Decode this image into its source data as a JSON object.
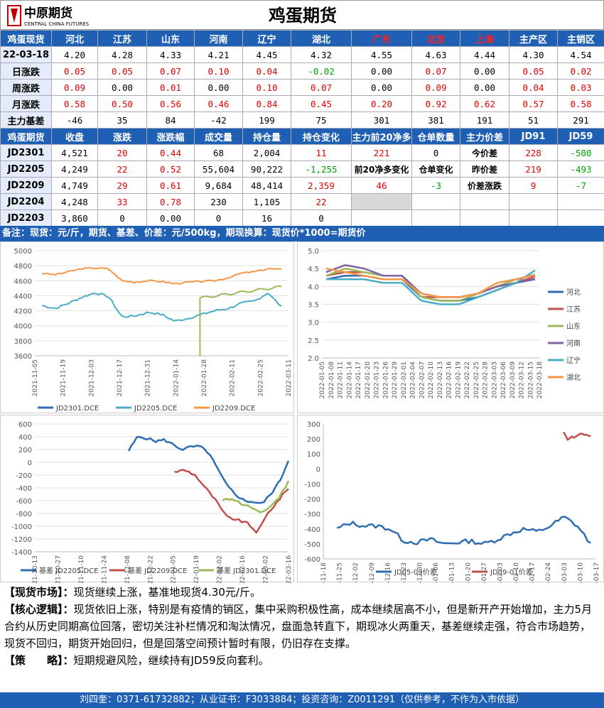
{
  "header": {
    "title": "鸡蛋期货",
    "logo_text": "中原期货",
    "logo_sub": "CENTRAL CHINA FUTURES"
  },
  "spot": {
    "headers": [
      "鸡蛋现货",
      "河北",
      "江苏",
      "山东",
      "河南",
      "辽宁",
      "湖北",
      "广东",
      "北京",
      "上海",
      "主产区",
      "主销区"
    ],
    "red_headers": [
      7,
      8,
      9
    ],
    "rows": [
      {
        "label": "22-03-18",
        "cells": [
          "4.20",
          "4.28",
          "4.33",
          "4.21",
          "4.45",
          "4.32",
          "4.55",
          "4.63",
          "4.44",
          "4.30",
          "4.54"
        ],
        "colors": [
          "",
          "",
          "",
          "",
          "",
          "",
          "",
          "",
          "",
          "",
          ""
        ]
      },
      {
        "label": "日涨跌",
        "cells": [
          "0.05",
          "0.05",
          "0.07",
          "0.10",
          "0.04",
          "-0.02",
          "0.00",
          "0.07",
          "0.00",
          "0.05",
          "0.02"
        ],
        "colors": [
          "r",
          "r",
          "r",
          "r",
          "r",
          "g",
          "",
          "r",
          "",
          "r",
          "r"
        ]
      },
      {
        "label": "周涨跌",
        "cells": [
          "0.09",
          "0.00",
          "0.01",
          "0.00",
          "0.10",
          "0.07",
          "0.00",
          "0.09",
          "0.00",
          "0.04",
          "0.03"
        ],
        "colors": [
          "r",
          "",
          "r",
          "",
          "r",
          "r",
          "",
          "r",
          "",
          "r",
          "r"
        ]
      },
      {
        "label": "月涨跌",
        "cells": [
          "0.58",
          "0.50",
          "0.56",
          "0.46",
          "0.84",
          "0.45",
          "0.20",
          "0.92",
          "0.62",
          "0.57",
          "0.58"
        ],
        "colors": [
          "r",
          "r",
          "r",
          "r",
          "r",
          "r",
          "r",
          "r",
          "r",
          "r",
          "r"
        ]
      },
      {
        "label": "主力基差",
        "cells": [
          "-46",
          "35",
          "84",
          "-42",
          "199",
          "75",
          "301",
          "381",
          "191",
          "51",
          "291"
        ],
        "colors": [
          "",
          "",
          "",
          "",
          "",
          "",
          "",
          "",
          "",
          "",
          ""
        ]
      }
    ]
  },
  "futures": {
    "headers": [
      "鸡蛋期货",
      "收盘",
      "涨跌",
      "涨跌幅",
      "成交量",
      "持仓量",
      "持仓变化",
      "主力前20净多",
      "仓单数量",
      "主力价差",
      "JD91",
      "JD59"
    ],
    "rows": [
      {
        "c": [
          "JD2301",
          "4,521",
          "20",
          "0.44",
          "68",
          "2,004",
          "11",
          "221",
          "0",
          "今价差",
          "228",
          "-500"
        ],
        "k": [
          "",
          "",
          "r",
          "r",
          "",
          "",
          "r",
          "r",
          "",
          "b",
          "r",
          "g"
        ]
      },
      {
        "c": [
          "JD2205",
          "4,249",
          "22",
          "0.52",
          "55,604",
          "90,222",
          "-1,255",
          "前20净多变化",
          "仓单变化",
          "昨价差",
          "219",
          "-493"
        ],
        "k": [
          "",
          "",
          "r",
          "r",
          "",
          "",
          "g",
          "b",
          "b",
          "b",
          "r",
          "g"
        ]
      },
      {
        "c": [
          "JD2209",
          "4,749",
          "29",
          "0.61",
          "9,684",
          "48,414",
          "2,359",
          "46",
          "-3",
          "价差涨跌",
          "9",
          "-7"
        ],
        "k": [
          "",
          "",
          "r",
          "r",
          "",
          "",
          "r",
          "r",
          "g",
          "b",
          "r",
          "g"
        ]
      },
      {
        "c": [
          "JD2204",
          "4,248",
          "33",
          "0.78",
          "230",
          "1,105",
          "22",
          "",
          "",
          "",
          "",
          ""
        ],
        "k": [
          "",
          "",
          "r",
          "r",
          "",
          "",
          "r",
          "x",
          "",
          "",
          "",
          ""
        ]
      },
      {
        "c": [
          "JD2203",
          "3,860",
          "0",
          "0.00",
          "0",
          "16",
          "0",
          "",
          "",
          "",
          "",
          ""
        ],
        "k": [
          "",
          "",
          "",
          "",
          "",
          "",
          "",
          "",
          "",
          "",
          "",
          ""
        ]
      }
    ]
  },
  "note": "备注：现货：元/斤，期货、基差、价差：元/500kg，期现换算：现货价*1000=期货价",
  "charts": {
    "c1": {
      "legend": [
        "JD2301.DCE",
        "JD2205.DCE",
        "JD2209.DCE"
      ],
      "colors": [
        "#2e6db4",
        "#4bacc6",
        "#f79646"
      ],
      "yticks": [
        "5000",
        "4800",
        "4600",
        "4400",
        "4200",
        "4000",
        "3800",
        "3600"
      ],
      "xticks": [
        "2021-11-05",
        "2021-11-19",
        "2021-12-03",
        "2021-12-17",
        "2021-12-31",
        "2022-01-14",
        "2022-01-28",
        "2022-02-11",
        "2022-02-25",
        "2022-03-11"
      ],
      "extra_color": "#9bbb59"
    },
    "c2": {
      "legend": [
        "河北",
        "江苏",
        "山东",
        "河南",
        "辽宁",
        "湖北"
      ],
      "colors": [
        "#2e6db4",
        "#c0504d",
        "#9bbb59",
        "#8064a2",
        "#4bacc6",
        "#f79646"
      ],
      "yticks": [
        "5.0",
        "4.5",
        "4.0",
        "3.5",
        "3.0",
        "2.5",
        "2.0"
      ],
      "xticks": [
        "2022-01-05",
        "2022-01-08",
        "2022-01-11",
        "2022-01-14",
        "2022-01-17",
        "2022-01-20",
        "2022-01-23",
        "2022-01-26",
        "2022-01-29",
        "2022-02-01",
        "2022-02-04",
        "2022-02-07",
        "2022-02-10",
        "2022-02-13",
        "2022-02-16",
        "2022-02-19",
        "2022-02-22",
        "2022-02-25",
        "2022-02-28",
        "2022-03-03",
        "2022-03-06",
        "2022-03-09",
        "2022-03-12",
        "2022-03-15",
        "2022-03-18"
      ]
    },
    "c3": {
      "legend": [
        "基差 JD2205.DCE",
        "基差 JD2209.DCE",
        "基差 JD2301.DCE"
      ],
      "colors": [
        "#2e6db4",
        "#c0504d",
        "#9bbb59"
      ],
      "yticks": [
        "600",
        "400",
        "200",
        "0",
        "-200",
        "-400",
        "-600",
        "-800",
        "-1000",
        "-1200",
        "-1400"
      ],
      "xticks": [
        "2021-10-13",
        "2021-10-27",
        "2021-11-10",
        "2021-11-24",
        "2021-12-08",
        "2021-12-22",
        "2022-01-05",
        "2022-01-19",
        "2022-02-02",
        "2022-02-16",
        "2022-03-02",
        "2022-03-16"
      ]
    },
    "c4": {
      "legend": [
        "JD05-09价差",
        "JD09-01价差"
      ],
      "colors": [
        "#2e6db4",
        "#c0504d"
      ],
      "yticks": [
        "300",
        "200",
        "100",
        "0",
        "-100",
        "-200",
        "-300",
        "-400",
        "-500",
        "-600"
      ],
      "xticks": [
        "2021-11-18",
        "2021-11-25",
        "2021-12-02",
        "2021-12-09",
        "2021-12-16",
        "2021-12-23",
        "2021-12-30",
        "2022-01-06",
        "2022-01-13",
        "2022-01-20",
        "2022-01-27",
        "2022-02-03",
        "2022-02-10",
        "2022-02-17",
        "2022-02-24",
        "2022-03-03",
        "2022-03-10",
        "2022-03-17"
      ]
    }
  },
  "chart_data": [
    {
      "type": "line",
      "title": "",
      "ylim": [
        3600,
        5000
      ],
      "x": [
        "2021-11-05",
        "2021-11-19",
        "2021-12-03",
        "2021-12-17",
        "2021-12-31",
        "2022-01-14",
        "2022-01-28",
        "2022-02-11",
        "2022-02-25",
        "2022-03-11",
        "2022-03-18"
      ],
      "series": [
        {
          "name": "JD2301.DCE",
          "values": [
            null,
            null,
            null,
            null,
            null,
            null,
            null,
            null,
            null,
            null,
            null
          ]
        },
        {
          "name": "JD2205.DCE",
          "values": [
            4270,
            4300,
            4390,
            4120,
            4180,
            4060,
            4150,
            4230,
            4330,
            4440,
            4249
          ]
        },
        {
          "name": "JD2209.DCE",
          "values": [
            4700,
            4740,
            4770,
            4600,
            4590,
            4560,
            4580,
            4380,
            4440,
            4510,
            4749
          ]
        }
      ]
    },
    {
      "type": "line",
      "title": "",
      "ylim": [
        2.0,
        5.0
      ],
      "x": [
        "2022-01-05",
        "2022-01-20",
        "2022-02-01",
        "2022-02-10",
        "2022-02-22",
        "2022-03-06",
        "2022-03-18"
      ],
      "series": [
        {
          "name": "河北",
          "values": [
            4.2,
            4.3,
            4.2,
            3.7,
            3.6,
            3.9,
            4.2
          ]
        },
        {
          "name": "江苏",
          "values": [
            4.3,
            4.4,
            4.3,
            3.7,
            3.7,
            4.0,
            4.28
          ]
        },
        {
          "name": "山东",
          "values": [
            4.3,
            4.4,
            4.3,
            3.7,
            3.6,
            4.0,
            4.33
          ]
        },
        {
          "name": "河南",
          "values": [
            4.4,
            4.6,
            4.3,
            3.8,
            3.7,
            4.0,
            4.21
          ]
        },
        {
          "name": "辽宁",
          "values": [
            4.2,
            4.2,
            4.1,
            3.6,
            3.5,
            3.9,
            4.45
          ]
        },
        {
          "name": "湖北",
          "values": [
            4.5,
            4.3,
            4.2,
            3.8,
            3.7,
            4.1,
            4.32
          ]
        }
      ]
    },
    {
      "type": "line",
      "title": "",
      "ylim": [
        -1400,
        600
      ],
      "x": [
        "2021-12-08",
        "2021-12-22",
        "2022-01-05",
        "2022-01-19",
        "2022-02-02",
        "2022-02-16",
        "2022-03-02",
        "2022-03-16"
      ],
      "series": [
        {
          "name": "基差 JD2205.DCE",
          "values": [
            380,
            330,
            200,
            150,
            -200,
            -500,
            -650,
            -46
          ]
        },
        {
          "name": "基差 JD2209.DCE",
          "values": [
            null,
            null,
            -150,
            -400,
            -850,
            -950,
            -1100,
            -400
          ]
        },
        {
          "name": "基差 JD2301.DCE",
          "values": [
            null,
            null,
            null,
            null,
            -600,
            -700,
            -800,
            -300
          ]
        }
      ]
    },
    {
      "type": "line",
      "title": "",
      "ylim": [
        -600,
        300
      ],
      "x": [
        "2021-11-18",
        "2021-12-02",
        "2021-12-16",
        "2021-12-30",
        "2022-01-13",
        "2022-01-27",
        "2022-02-10",
        "2022-02-24",
        "2022-03-10",
        "2022-03-17"
      ],
      "series": [
        {
          "name": "JD05-09价差",
          "values": [
            -380,
            -370,
            -400,
            -480,
            -490,
            -500,
            -430,
            -400,
            -320,
            -500
          ]
        },
        {
          "name": "JD09-01价差",
          "values": [
            null,
            null,
            null,
            null,
            null,
            null,
            null,
            null,
            210,
            219
          ]
        }
      ]
    }
  ],
  "text": {
    "market_label": "【现货市场】：",
    "market": "现货继续上涨，基准地现货4.30元/斤。",
    "logic_label": "【核心逻辑】：",
    "logic": "现货依旧上涨，特别是有疫情的销区，集中采购积极性高，成本继续居高不小，但是新开产开始增加，主力5月合约从历史同期高位回落，密切关注补栏情况和淘汰情况，盘面急转直下，期现冰火两重天，基差继续走强，符合市场趋势，现货不回归，期货开始回归，但是回落空间预计暂时有限，仍旧存在支撑。",
    "strategy_label": "【策　　略】：",
    "strategy": "短期规避风险，继续持有JD59反向套利。"
  },
  "footer": "刘四奎：0371-61732882；从业证书：F3033884；投资咨询：Z0011291（仅供参考，不作为入市依据）"
}
